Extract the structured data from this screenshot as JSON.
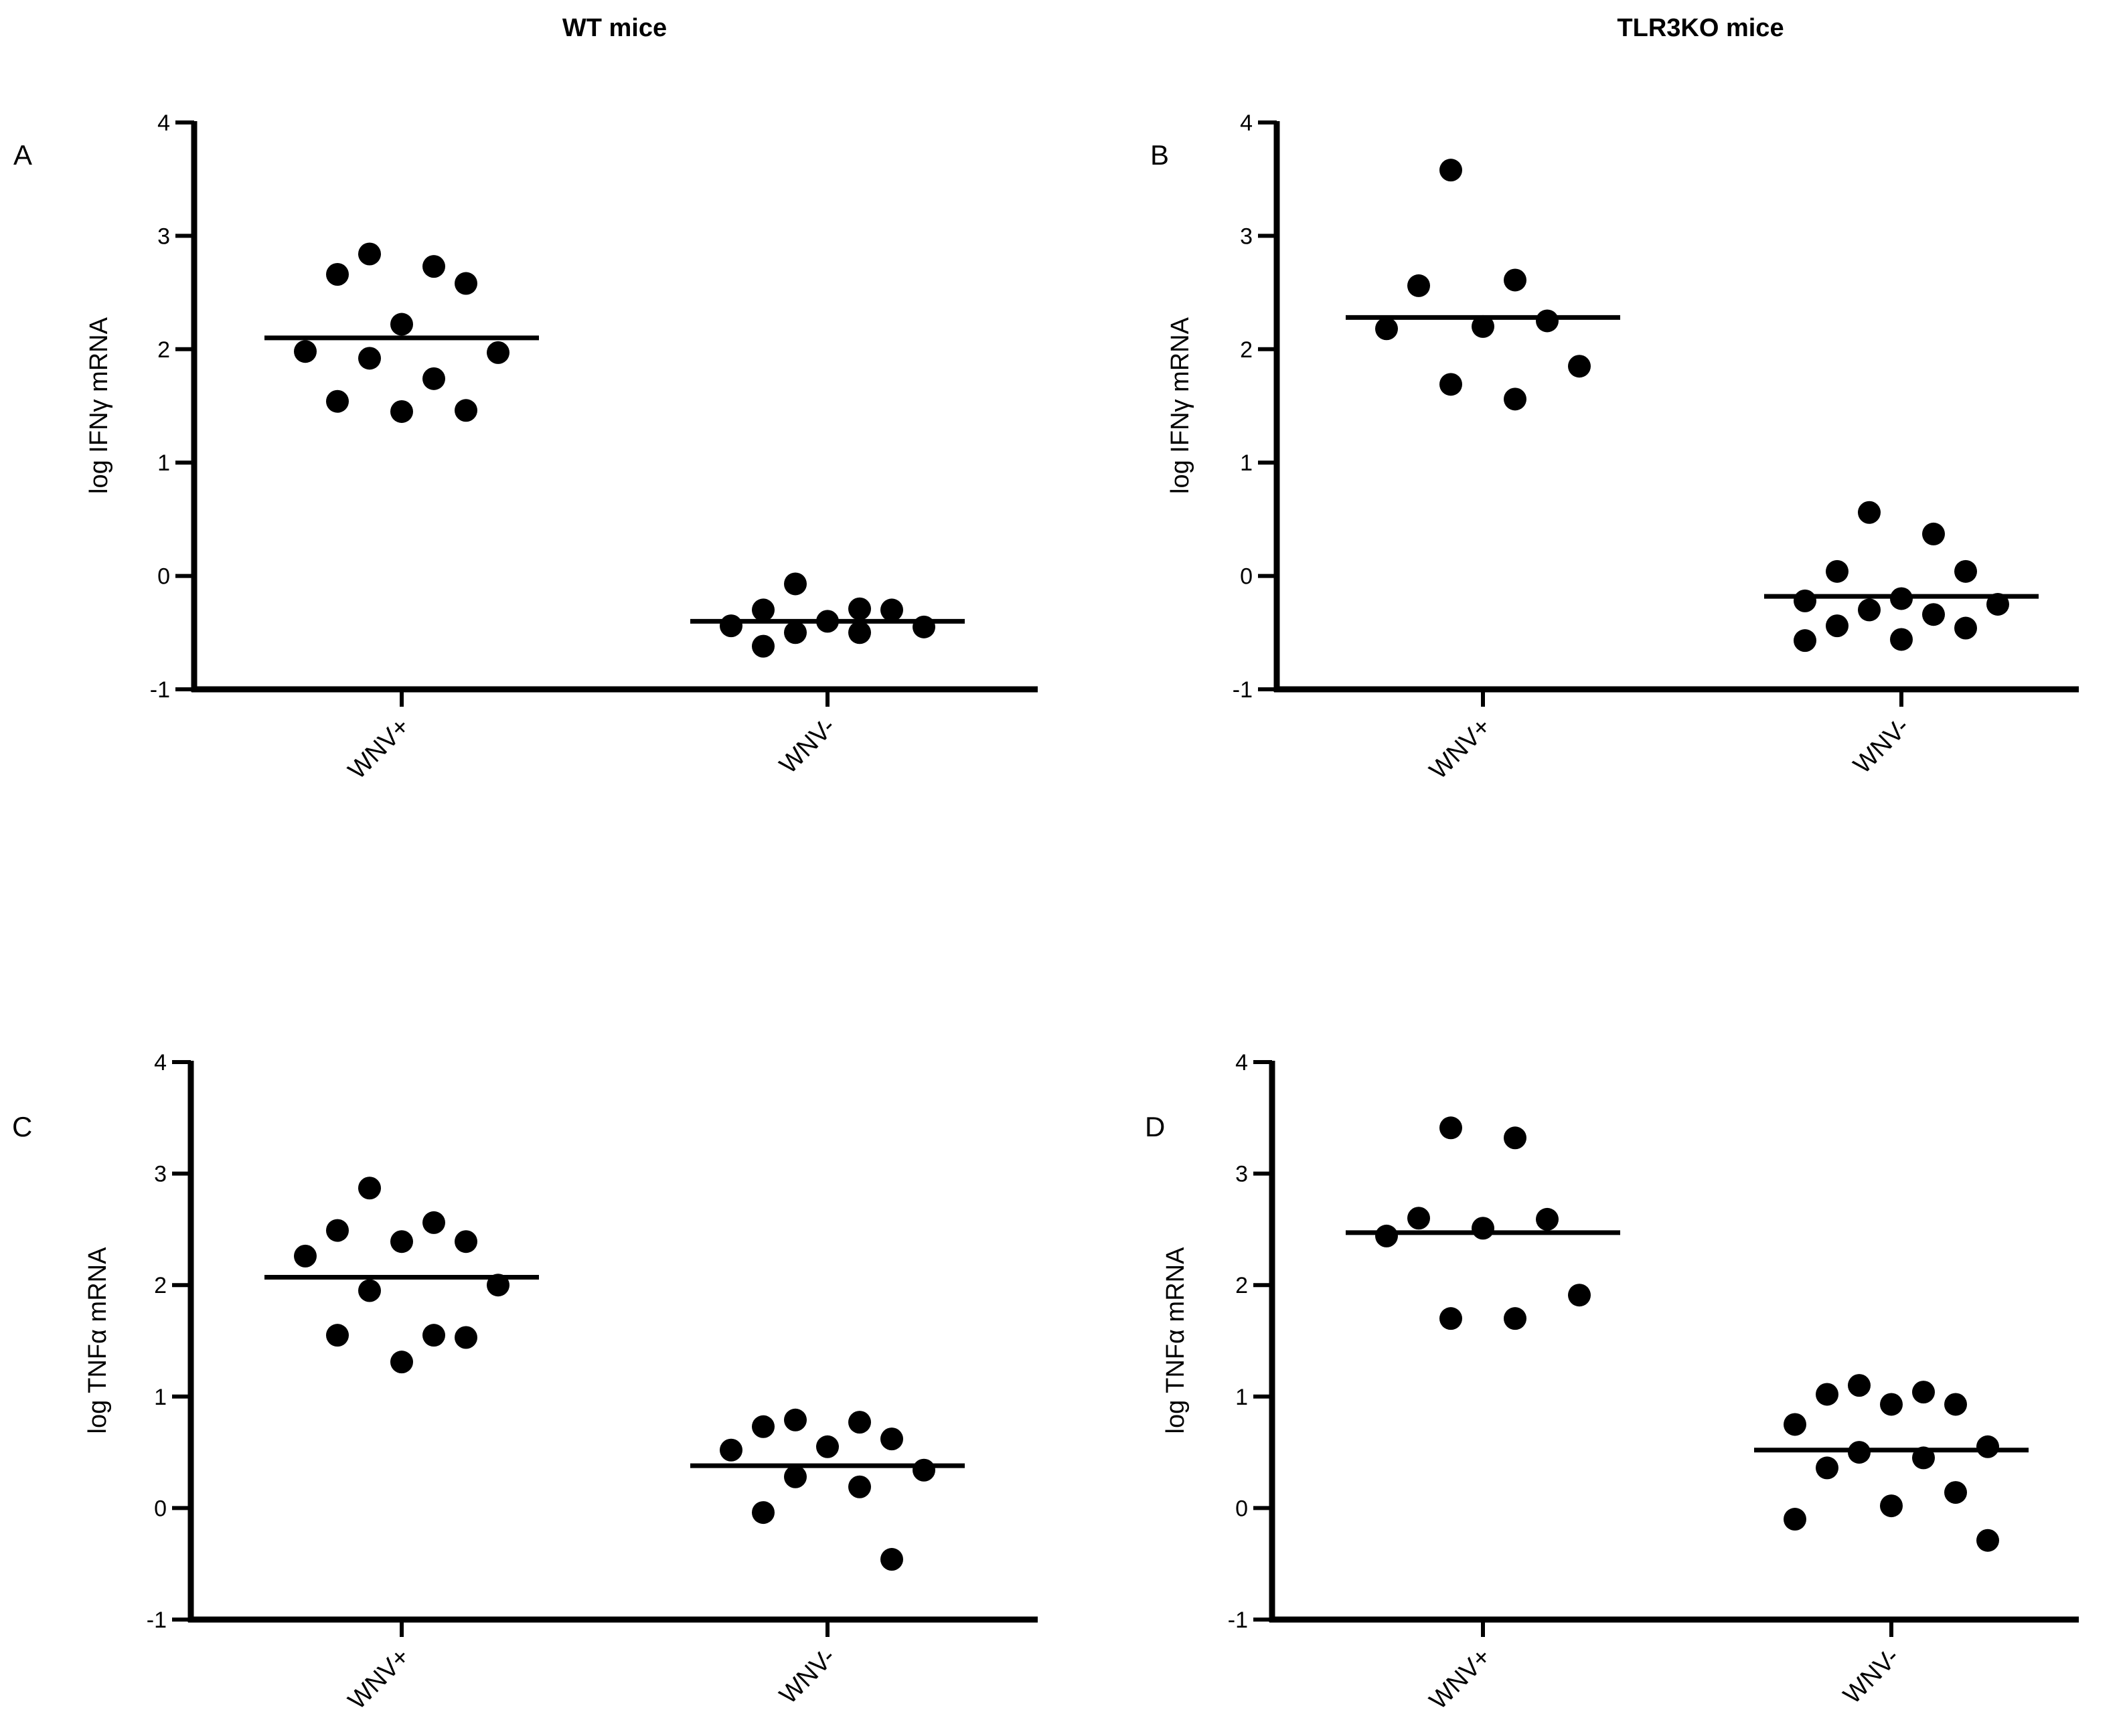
{
  "column_titles": [
    "WT mice",
    "TLR3KO mice"
  ],
  "chart_data": [
    {
      "type": "scatter",
      "panel": "A",
      "ylabel": "log IFNγ mRNA",
      "ylim": [
        -1,
        4
      ],
      "yticks": [
        "4",
        "3",
        "2",
        "1",
        "0",
        "-1"
      ],
      "categories": [
        "WNV+",
        "WNV-"
      ],
      "series": [
        {
          "name": "WNV+",
          "values": [
            2.84,
            2.66,
            2.58,
            2.73,
            2.22,
            1.98,
            1.92,
            1.97,
            1.74,
            1.54,
            1.45,
            1.46
          ],
          "mean": 2.1
        },
        {
          "name": "WNV-",
          "values": [
            -0.07,
            -0.4,
            -0.45,
            -0.5,
            -0.3,
            -0.29,
            -0.3,
            -0.5,
            -0.44,
            -0.62
          ],
          "mean": -0.4
        }
      ]
    },
    {
      "type": "scatter",
      "panel": "B",
      "ylabel": "log IFNγ mRNA",
      "ylim": [
        -1,
        4
      ],
      "yticks": [
        "4",
        "3",
        "2",
        "1",
        "0",
        "-1"
      ],
      "categories": [
        "WNV+",
        "WNV-"
      ],
      "series": [
        {
          "name": "WNV+",
          "values": [
            3.58,
            2.56,
            2.61,
            2.2,
            2.18,
            2.25,
            1.85,
            1.69,
            1.56
          ],
          "mean": 2.28
        },
        {
          "name": "WNV-",
          "values": [
            0.56,
            0.37,
            0.04,
            0.04,
            -0.2,
            -0.25,
            -0.22,
            -0.34,
            -0.3,
            -0.46,
            -0.44,
            -0.56,
            -0.57
          ],
          "mean": -0.18
        }
      ]
    },
    {
      "type": "scatter",
      "panel": "C",
      "ylabel": "log TNFα mRNA",
      "ylim": [
        -1,
        4
      ],
      "yticks": [
        "4",
        "3",
        "2",
        "1",
        "0",
        "-1"
      ],
      "categories": [
        "WNV+",
        "WNV-"
      ],
      "series": [
        {
          "name": "WNV+",
          "values": [
            2.87,
            2.56,
            2.39,
            2.26,
            2.39,
            2.49,
            2.0,
            1.95,
            1.55,
            1.53,
            1.55,
            1.31
          ],
          "mean": 2.07
        },
        {
          "name": "WNV-",
          "values": [
            0.77,
            0.73,
            0.79,
            0.62,
            0.55,
            0.52,
            0.34,
            0.28,
            0.19,
            -0.04,
            -0.46
          ],
          "mean": 0.38
        }
      ]
    },
    {
      "type": "scatter",
      "panel": "D",
      "ylabel": "log TNFα mRNA",
      "ylim": [
        -1,
        4
      ],
      "yticks": [
        "4",
        "3",
        "2",
        "1",
        "0",
        "-1"
      ],
      "categories": [
        "WNV+",
        "WNV-"
      ],
      "series": [
        {
          "name": "WNV+",
          "values": [
            3.41,
            3.32,
            2.6,
            2.51,
            2.44,
            2.59,
            1.91,
            1.7,
            1.7
          ],
          "mean": 2.47
        },
        {
          "name": "WNV-",
          "values": [
            1.1,
            1.02,
            1.04,
            0.93,
            0.93,
            0.75,
            0.55,
            0.5,
            0.45,
            0.36,
            0.14,
            0.02,
            -0.1,
            -0.29
          ],
          "mean": 0.52
        }
      ]
    }
  ]
}
